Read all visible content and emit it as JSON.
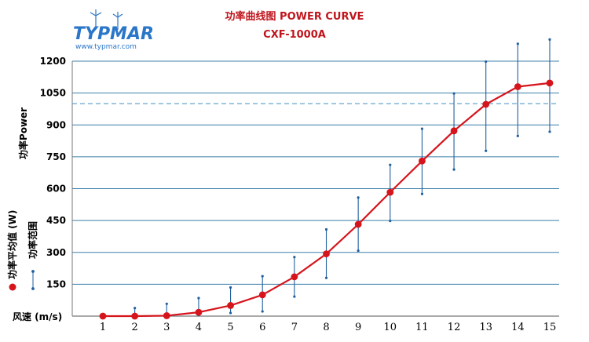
{
  "header": {
    "title": "功率曲线图 POWER CURVE",
    "subtitle": "CXF-1000A"
  },
  "logo": {
    "brand": "TYPMAR",
    "url": "www.typmar.com"
  },
  "legend": {
    "avg_label": "功率平均值 (W)",
    "range_label": "功率范围",
    "avg_color": "#d6141c",
    "range_color": "#1f5f9e"
  },
  "chart_data": {
    "type": "line",
    "title": "功率曲线图 POWER CURVE",
    "subtitle": "CXF-1000A",
    "xlabel": "风速 (m/s)",
    "ylabel": "功率Power",
    "x": [
      1,
      2,
      3,
      4,
      5,
      6,
      7,
      8,
      9,
      10,
      11,
      12,
      13,
      14,
      15
    ],
    "xlim": [
      1,
      15
    ],
    "ylim": [
      0,
      1200
    ],
    "yticks": [
      150,
      300,
      450,
      600,
      750,
      900,
      1050,
      1200
    ],
    "grid": true,
    "reference_line": 1000,
    "series": [
      {
        "name": "功率平均值 (W)",
        "kind": "line-marker",
        "values": [
          0,
          0,
          2,
          18,
          50,
          100,
          185,
          293,
          432,
          583,
          730,
          872,
          997,
          1080,
          1097
        ]
      },
      {
        "name": "功率范围",
        "kind": "range-bars",
        "low": [
          null,
          0,
          0,
          5,
          15,
          22,
          92,
          180,
          308,
          448,
          575,
          690,
          778,
          848,
          868
        ],
        "high": [
          null,
          38,
          58,
          85,
          135,
          188,
          278,
          408,
          558,
          712,
          882,
          1048,
          1198,
          1282,
          1302
        ]
      }
    ]
  }
}
